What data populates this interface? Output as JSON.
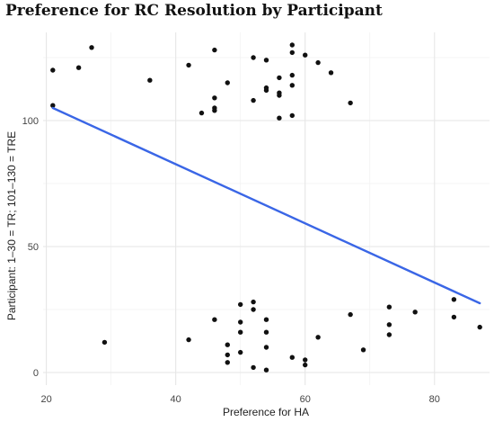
{
  "chart_data": {
    "type": "scatter",
    "title": "Preference for RC Resolution by Participant",
    "xlabel": "Preference for HA",
    "ylabel": "Participant: 1–30 = TR; 101–130 = TRE",
    "xlim": [
      19.5,
      88.5
    ],
    "ylim": [
      -5,
      135
    ],
    "x_ticks": [
      20,
      40,
      60,
      80
    ],
    "y_ticks": [
      0,
      50,
      100
    ],
    "grid": true,
    "series": [
      {
        "points": [
          [
            21,
            120
          ],
          [
            21,
            106
          ],
          [
            25,
            121
          ],
          [
            27,
            129
          ],
          [
            36,
            116
          ],
          [
            42,
            122
          ],
          [
            44,
            103
          ],
          [
            46,
            128
          ],
          [
            46,
            109
          ],
          [
            46,
            105
          ],
          [
            46,
            104
          ],
          [
            48,
            115
          ],
          [
            52,
            125
          ],
          [
            52,
            108
          ],
          [
            54,
            124
          ],
          [
            54,
            113
          ],
          [
            54,
            112
          ],
          [
            56,
            117
          ],
          [
            56,
            111
          ],
          [
            56,
            110
          ],
          [
            56,
            101
          ],
          [
            58,
            130
          ],
          [
            58,
            127
          ],
          [
            58,
            118
          ],
          [
            58,
            114
          ],
          [
            58,
            102
          ],
          [
            60,
            126
          ],
          [
            62,
            123
          ],
          [
            64,
            119
          ],
          [
            67,
            107
          ],
          [
            29,
            12
          ],
          [
            42,
            13
          ],
          [
            46,
            21
          ],
          [
            48,
            11
          ],
          [
            48,
            7
          ],
          [
            48,
            4
          ],
          [
            50,
            27
          ],
          [
            50,
            20
          ],
          [
            50,
            16
          ],
          [
            50,
            8
          ],
          [
            52,
            28
          ],
          [
            52,
            25
          ],
          [
            52,
            2
          ],
          [
            54,
            21
          ],
          [
            54,
            16
          ],
          [
            54,
            10
          ],
          [
            54,
            1
          ],
          [
            58,
            6
          ],
          [
            60,
            5
          ],
          [
            60,
            3
          ],
          [
            62,
            14
          ],
          [
            67,
            23
          ],
          [
            69,
            9
          ],
          [
            73,
            26
          ],
          [
            73,
            19
          ],
          [
            73,
            15
          ],
          [
            77,
            24
          ],
          [
            83,
            29
          ],
          [
            83,
            22
          ],
          [
            87,
            18
          ]
        ]
      }
    ],
    "fit_line": {
      "x": [
        21,
        87
      ],
      "y": [
        105,
        27.5
      ],
      "color": "#3a66e6"
    }
  }
}
